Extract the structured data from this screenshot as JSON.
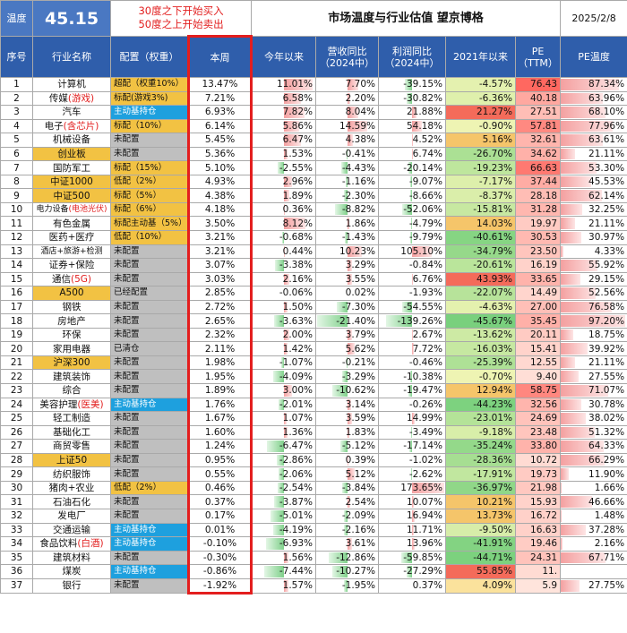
{
  "header": {
    "temp_label": "温度",
    "temp_value": "45.15",
    "rule_line1": "30度之下开始买入",
    "rule_line2": "50度之上开始卖出",
    "title": "市场温度与行业估值 望京博格",
    "date": "2025/2/8"
  },
  "columns": [
    "序号",
    "行业名称",
    "配置（权重）",
    "本周",
    "今年以来",
    "营收同比（2024中）",
    "利润同比（2024中）",
    "2021年以来",
    "PE（TTM）",
    "PE温度"
  ],
  "colors": {
    "header_blue": "#2f5eab",
    "gold": "#f2c243",
    "cyan": "#1ea0de",
    "gray": "#bfbfbf",
    "week_border": "#e31e1e",
    "pos": "#f4a0a0",
    "neg": "#7fd08a"
  },
  "rows": [
    {
      "no": "1",
      "name": "计算机",
      "sub": "",
      "hl": false,
      "cfg": "超配（权重10%）",
      "ct": "y",
      "week": "13.47%",
      "ytd": "11.01%",
      "rev": "7.70%",
      "prof": "-39.15%",
      "since21": "-4.57%",
      "pe": "76.43",
      "pet": "87.34%",
      "v_ytd": 11.01,
      "v_rev": 7.7,
      "v_prof": -39.15,
      "v_s21": -4.57,
      "v_pe": 76.43,
      "v_pet": 87.34
    },
    {
      "no": "2",
      "name": "传媒",
      "sub": "(游戏)",
      "hl": false,
      "cfg": "标配(游戏3%)",
      "ct": "y",
      "week": "7.21%",
      "ytd": "6.58%",
      "rev": "2.20%",
      "prof": "-30.82%",
      "since21": "-6.36%",
      "pe": "40.18",
      "pet": "63.96%",
      "v_ytd": 6.58,
      "v_rev": 2.2,
      "v_prof": -30.82,
      "v_s21": -6.36,
      "v_pe": 40.18,
      "v_pet": 63.96
    },
    {
      "no": "3",
      "name": "汽车",
      "sub": "",
      "hl": false,
      "cfg": "主动基持仓",
      "ct": "b",
      "week": "6.93%",
      "ytd": "7.82%",
      "rev": "8.04%",
      "prof": "21.88%",
      "since21": "21.27%",
      "pe": "27.51",
      "pet": "68.10%",
      "v_ytd": 7.82,
      "v_rev": 8.04,
      "v_prof": 21.88,
      "v_s21": 21.27,
      "v_pe": 27.51,
      "v_pet": 68.1
    },
    {
      "no": "4",
      "name": "电子",
      "sub": "(含芯片)",
      "hl": false,
      "cfg": "标配（10%）",
      "ct": "y",
      "week": "6.14%",
      "ytd": "5.86%",
      "rev": "14.59%",
      "prof": "54.18%",
      "since21": "-0.90%",
      "pe": "57.81",
      "pet": "77.96%",
      "v_ytd": 5.86,
      "v_rev": 14.59,
      "v_prof": 54.18,
      "v_s21": -0.9,
      "v_pe": 57.81,
      "v_pet": 77.96
    },
    {
      "no": "5",
      "name": "机械设备",
      "sub": "",
      "hl": false,
      "cfg": "未配置",
      "ct": "g",
      "week": "5.45%",
      "ytd": "6.47%",
      "rev": "4.38%",
      "prof": "4.52%",
      "since21": "5.16%",
      "pe": "32.61",
      "pet": "63.61%",
      "v_ytd": 6.47,
      "v_rev": 4.38,
      "v_prof": 4.52,
      "v_s21": 5.16,
      "v_pe": 32.61,
      "v_pet": 63.61
    },
    {
      "no": "6",
      "name": "创业板",
      "sub": "",
      "hl": true,
      "cfg": "未配置",
      "ct": "g",
      "week": "5.36%",
      "ytd": "1.53%",
      "rev": "-0.41%",
      "prof": "6.74%",
      "since21": "-26.70%",
      "pe": "34.62",
      "pet": "21.11%",
      "v_ytd": 1.53,
      "v_rev": -0.41,
      "v_prof": 6.74,
      "v_s21": -26.7,
      "v_pe": 34.62,
      "v_pet": 21.11
    },
    {
      "no": "7",
      "name": "国防军工",
      "sub": "",
      "hl": false,
      "cfg": "标配（15%）",
      "ct": "y",
      "week": "5.10%",
      "ytd": "-2.55%",
      "rev": "-4.43%",
      "prof": "-20.14%",
      "since21": "-19.23%",
      "pe": "66.63",
      "pet": "53.30%",
      "v_ytd": -2.55,
      "v_rev": -4.43,
      "v_prof": -20.14,
      "v_s21": -19.23,
      "v_pe": 66.63,
      "v_pet": 53.3
    },
    {
      "no": "8",
      "name": "中证1000",
      "sub": "",
      "hl": true,
      "cfg": "低配（2%）",
      "ct": "y",
      "week": "4.93%",
      "ytd": "2.96%",
      "rev": "-1.16%",
      "prof": "-9.07%",
      "since21": "-7.17%",
      "pe": "37.44",
      "pet": "45.53%",
      "v_ytd": 2.96,
      "v_rev": -1.16,
      "v_prof": -9.07,
      "v_s21": -7.17,
      "v_pe": 37.44,
      "v_pet": 45.53
    },
    {
      "no": "9",
      "name": "中证500",
      "sub": "",
      "hl": true,
      "cfg": "标配（5%）",
      "ct": "y",
      "week": "4.38%",
      "ytd": "1.89%",
      "rev": "-2.30%",
      "prof": "-8.66%",
      "since21": "-8.37%",
      "pe": "28.18",
      "pet": "62.14%",
      "v_ytd": 1.89,
      "v_rev": -2.3,
      "v_prof": -8.66,
      "v_s21": -8.37,
      "v_pe": 28.18,
      "v_pet": 62.14
    },
    {
      "no": "10",
      "name": "电力设备",
      "sub": "(电池光伏)",
      "hl": false,
      "small": true,
      "cfg": "标配（6%）",
      "ct": "y",
      "week": "4.18%",
      "ytd": "0.36%",
      "rev": "-8.82%",
      "prof": "-52.06%",
      "since21": "-15.81%",
      "pe": "31.28",
      "pet": "32.25%",
      "v_ytd": 0.36,
      "v_rev": -8.82,
      "v_prof": -52.06,
      "v_s21": -15.81,
      "v_pe": 31.28,
      "v_pet": 32.25
    },
    {
      "no": "11",
      "name": "有色金属",
      "sub": "",
      "hl": false,
      "cfg": "标配主动基（5%）",
      "ct": "y",
      "week": "3.50%",
      "ytd": "8.12%",
      "rev": "1.86%",
      "prof": "-4.79%",
      "since21": "14.03%",
      "pe": "19.97",
      "pet": "21.11%",
      "v_ytd": 8.12,
      "v_rev": 1.86,
      "v_prof": -4.79,
      "v_s21": 14.03,
      "v_pe": 19.97,
      "v_pet": 21.11
    },
    {
      "no": "12",
      "name": "医药+医疗",
      "sub": "",
      "hl": false,
      "cfg": "低配（10%）",
      "ct": "y",
      "week": "3.21%",
      "ytd": "-0.68%",
      "rev": "-1.43%",
      "prof": "-9.79%",
      "since21": "-40.61%",
      "pe": "30.53",
      "pet": "30.97%",
      "v_ytd": -0.68,
      "v_rev": -1.43,
      "v_prof": -9.79,
      "v_s21": -40.61,
      "v_pe": 30.53,
      "v_pet": 30.97
    },
    {
      "no": "13",
      "name": "酒店+旅游+检测",
      "sub": "",
      "hl": false,
      "small": true,
      "cfg": "未配置",
      "ct": "g",
      "week": "3.21%",
      "ytd": "0.44%",
      "rev": "10.23%",
      "prof": "105.10%",
      "since21": "-34.79%",
      "pe": "23.50",
      "pet": "4.33%",
      "v_ytd": 0.44,
      "v_rev": 10.23,
      "v_prof": 105.1,
      "v_s21": -34.79,
      "v_pe": 23.5,
      "v_pet": 4.33
    },
    {
      "no": "14",
      "name": "证券+保险",
      "sub": "",
      "hl": false,
      "cfg": "未配置",
      "ct": "g",
      "week": "3.07%",
      "ytd": "-3.38%",
      "rev": "3.29%",
      "prof": "-0.84%",
      "since21": "-20.61%",
      "pe": "16.19",
      "pet": "55.92%",
      "v_ytd": -3.38,
      "v_rev": 3.29,
      "v_prof": -0.84,
      "v_s21": -20.61,
      "v_pe": 16.19,
      "v_pet": 55.92
    },
    {
      "no": "15",
      "name": "通信",
      "sub": "(5G)",
      "hl": false,
      "cfg": "未配置",
      "ct": "g",
      "week": "3.03%",
      "ytd": "2.16%",
      "rev": "3.55%",
      "prof": "6.76%",
      "since21": "43.93%",
      "pe": "33.65",
      "pet": "29.15%",
      "v_ytd": 2.16,
      "v_rev": 3.55,
      "v_prof": 6.76,
      "v_s21": 43.93,
      "v_pe": 33.65,
      "v_pet": 29.15
    },
    {
      "no": "16",
      "name": "A500",
      "sub": "",
      "hl": true,
      "cfg": "已经配置",
      "ct": "g",
      "week": "2.85%",
      "ytd": "-0.06%",
      "rev": "0.02%",
      "prof": "-1.93%",
      "since21": "-22.07%",
      "pe": "14.49",
      "pet": "52.56%",
      "v_ytd": -0.06,
      "v_rev": 0.02,
      "v_prof": -1.93,
      "v_s21": -22.07,
      "v_pe": 14.49,
      "v_pet": 52.56
    },
    {
      "no": "17",
      "name": "钢铁",
      "sub": "",
      "hl": false,
      "cfg": "未配置",
      "ct": "g",
      "week": "2.72%",
      "ytd": "1.50%",
      "rev": "-7.30%",
      "prof": "-54.55%",
      "since21": "-4.63%",
      "pe": "27.00",
      "pet": "76.58%",
      "v_ytd": 1.5,
      "v_rev": -7.3,
      "v_prof": -54.55,
      "v_s21": -4.63,
      "v_pe": 27.0,
      "v_pet": 76.58
    },
    {
      "no": "18",
      "name": "房地产",
      "sub": "",
      "hl": false,
      "cfg": "未配置",
      "ct": "g",
      "week": "2.65%",
      "ytd": "-3.63%",
      "rev": "-21.40%",
      "prof": "-139.26%",
      "since21": "-45.67%",
      "pe": "35.45",
      "pet": "97.20%",
      "v_ytd": -3.63,
      "v_rev": -21.4,
      "v_prof": -139.26,
      "v_s21": -45.67,
      "v_pe": 35.45,
      "v_pet": 97.2
    },
    {
      "no": "19",
      "name": "环保",
      "sub": "",
      "hl": false,
      "cfg": "未配置",
      "ct": "g",
      "week": "2.32%",
      "ytd": "2.00%",
      "rev": "3.79%",
      "prof": "2.67%",
      "since21": "-13.62%",
      "pe": "20.11",
      "pet": "18.75%",
      "v_ytd": 2.0,
      "v_rev": 3.79,
      "v_prof": 2.67,
      "v_s21": -13.62,
      "v_pe": 20.11,
      "v_pet": 18.75
    },
    {
      "no": "20",
      "name": "家用电器",
      "sub": "",
      "hl": false,
      "cfg": "已清仓",
      "ct": "g",
      "week": "2.11%",
      "ytd": "1.42%",
      "rev": "5.62%",
      "prof": "7.72%",
      "since21": "-16.03%",
      "pe": "15.41",
      "pet": "39.92%",
      "v_ytd": 1.42,
      "v_rev": 5.62,
      "v_prof": 7.72,
      "v_s21": -16.03,
      "v_pe": 15.41,
      "v_pet": 39.92
    },
    {
      "no": "21",
      "name": "沪深300",
      "sub": "",
      "hl": true,
      "cfg": "未配置",
      "ct": "g",
      "week": "1.98%",
      "ytd": "-1.07%",
      "rev": "-0.21%",
      "prof": "-0.46%",
      "since21": "-25.39%",
      "pe": "12.55",
      "pet": "21.11%",
      "v_ytd": -1.07,
      "v_rev": -0.21,
      "v_prof": -0.46,
      "v_s21": -25.39,
      "v_pe": 12.55,
      "v_pet": 21.11
    },
    {
      "no": "22",
      "name": "建筑装饰",
      "sub": "",
      "hl": false,
      "cfg": "未配置",
      "ct": "g",
      "week": "1.95%",
      "ytd": "-4.09%",
      "rev": "-3.29%",
      "prof": "-10.38%",
      "since21": "-0.70%",
      "pe": "9.40",
      "pet": "27.55%",
      "v_ytd": -4.09,
      "v_rev": -3.29,
      "v_prof": -10.38,
      "v_s21": -0.7,
      "v_pe": 9.4,
      "v_pet": 27.55
    },
    {
      "no": "23",
      "name": "综合",
      "sub": "",
      "hl": false,
      "cfg": "未配置",
      "ct": "g",
      "week": "1.89%",
      "ytd": "3.00%",
      "rev": "-10.62%",
      "prof": "-19.47%",
      "since21": "12.94%",
      "pe": "58.75",
      "pet": "71.07%",
      "v_ytd": 3.0,
      "v_rev": -10.62,
      "v_prof": -19.47,
      "v_s21": 12.94,
      "v_pe": 58.75,
      "v_pet": 71.07
    },
    {
      "no": "24",
      "name": "美容护理",
      "sub": "(医美)",
      "hl": false,
      "cfg": "主动基持仓",
      "ct": "b",
      "week": "1.76%",
      "ytd": "-2.01%",
      "rev": "3.14%",
      "prof": "-0.26%",
      "since21": "-44.23%",
      "pe": "32.56",
      "pet": "30.78%",
      "v_ytd": -2.01,
      "v_rev": 3.14,
      "v_prof": -0.26,
      "v_s21": -44.23,
      "v_pe": 32.56,
      "v_pet": 30.78
    },
    {
      "no": "25",
      "name": "轻工制造",
      "sub": "",
      "hl": false,
      "cfg": "未配置",
      "ct": "g",
      "week": "1.67%",
      "ytd": "1.07%",
      "rev": "3.59%",
      "prof": "14.99%",
      "since21": "-23.01%",
      "pe": "24.69",
      "pet": "38.02%",
      "v_ytd": 1.07,
      "v_rev": 3.59,
      "v_prof": 14.99,
      "v_s21": -23.01,
      "v_pe": 24.69,
      "v_pet": 38.02
    },
    {
      "no": "26",
      "name": "基础化工",
      "sub": "",
      "hl": false,
      "cfg": "未配置",
      "ct": "g",
      "week": "1.60%",
      "ytd": "1.36%",
      "rev": "1.83%",
      "prof": "-3.49%",
      "since21": "-9.18%",
      "pe": "23.48",
      "pet": "51.32%",
      "v_ytd": 1.36,
      "v_rev": 1.83,
      "v_prof": -3.49,
      "v_s21": -9.18,
      "v_pe": 23.48,
      "v_pet": 51.32
    },
    {
      "no": "27",
      "name": "商贸零售",
      "sub": "",
      "hl": false,
      "cfg": "未配置",
      "ct": "g",
      "week": "1.24%",
      "ytd": "-6.47%",
      "rev": "-5.12%",
      "prof": "-17.14%",
      "since21": "-35.24%",
      "pe": "33.80",
      "pet": "64.33%",
      "v_ytd": -6.47,
      "v_rev": -5.12,
      "v_prof": -17.14,
      "v_s21": -35.24,
      "v_pe": 33.8,
      "v_pet": 64.33
    },
    {
      "no": "28",
      "name": "上证50",
      "sub": "",
      "hl": true,
      "cfg": "未配置",
      "ct": "g",
      "week": "0.95%",
      "ytd": "-2.86%",
      "rev": "0.39%",
      "prof": "-1.02%",
      "since21": "-28.36%",
      "pe": "10.72",
      "pet": "66.29%",
      "v_ytd": -2.86,
      "v_rev": 0.39,
      "v_prof": -1.02,
      "v_s21": -28.36,
      "v_pe": 10.72,
      "v_pet": 66.29
    },
    {
      "no": "29",
      "name": "纺织服饰",
      "sub": "",
      "hl": false,
      "cfg": "未配置",
      "ct": "g",
      "week": "0.55%",
      "ytd": "-2.06%",
      "rev": "5.12%",
      "prof": "-2.62%",
      "since21": "-17.91%",
      "pe": "19.73",
      "pet": "11.90%",
      "v_ytd": -2.06,
      "v_rev": 5.12,
      "v_prof": -2.62,
      "v_s21": -17.91,
      "v_pe": 19.73,
      "v_pet": 11.9
    },
    {
      "no": "30",
      "name": "猪肉+农业",
      "sub": "",
      "hl": false,
      "cfg": "低配（2%）",
      "ct": "y",
      "week": "0.46%",
      "ytd": "-2.54%",
      "rev": "-3.84%",
      "prof": "173.65%",
      "since21": "-36.97%",
      "pe": "21.98",
      "pet": "1.66%",
      "v_ytd": -2.54,
      "v_rev": -3.84,
      "v_prof": 173.65,
      "v_s21": -36.97,
      "v_pe": 21.98,
      "v_pet": 1.66
    },
    {
      "no": "31",
      "name": "石油石化",
      "sub": "",
      "hl": false,
      "cfg": "未配置",
      "ct": "g",
      "week": "0.37%",
      "ytd": "-3.87%",
      "rev": "2.54%",
      "prof": "10.07%",
      "since21": "10.21%",
      "pe": "15.93",
      "pet": "46.66%",
      "v_ytd": -3.87,
      "v_rev": 2.54,
      "v_prof": 10.07,
      "v_s21": 10.21,
      "v_pe": 15.93,
      "v_pet": 46.66
    },
    {
      "no": "32",
      "name": "发电厂",
      "sub": "",
      "hl": false,
      "cfg": "未配置",
      "ct": "g",
      "week": "0.17%",
      "ytd": "-5.01%",
      "rev": "-2.09%",
      "prof": "16.94%",
      "since21": "13.73%",
      "pe": "16.72",
      "pet": "1.48%",
      "v_ytd": -5.01,
      "v_rev": -2.09,
      "v_prof": 16.94,
      "v_s21": 13.73,
      "v_pe": 16.72,
      "v_pet": 1.48
    },
    {
      "no": "33",
      "name": "交通运输",
      "sub": "",
      "hl": false,
      "cfg": "主动基持仓",
      "ct": "b",
      "week": "0.01%",
      "ytd": "-4.19%",
      "rev": "-2.16%",
      "prof": "11.71%",
      "since21": "-9.50%",
      "pe": "16.63",
      "pet": "37.28%",
      "v_ytd": -4.19,
      "v_rev": -2.16,
      "v_prof": 11.71,
      "v_s21": -9.5,
      "v_pe": 16.63,
      "v_pet": 37.28
    },
    {
      "no": "34",
      "name": "食品饮料",
      "sub": "(白酒)",
      "hl": false,
      "cfg": "主动基持仓",
      "ct": "b",
      "week": "-0.10%",
      "ytd": "-6.93%",
      "rev": "3.61%",
      "prof": "13.96%",
      "since21": "-41.91%",
      "pe": "19.46",
      "pet": "2.16%",
      "v_ytd": -6.93,
      "v_rev": 3.61,
      "v_prof": 13.96,
      "v_s21": -41.91,
      "v_pe": 19.46,
      "v_pet": 2.16
    },
    {
      "no": "35",
      "name": "建筑材料",
      "sub": "",
      "hl": false,
      "cfg": "未配置",
      "ct": "g",
      "week": "-0.30%",
      "ytd": "1.56%",
      "rev": "-12.86%",
      "prof": "-59.85%",
      "since21": "-44.71%",
      "pe": "24.31",
      "pet": "67.71%",
      "v_ytd": 1.56,
      "v_rev": -12.86,
      "v_prof": -59.85,
      "v_s21": -44.71,
      "v_pe": 24.31,
      "v_pet": 67.71
    },
    {
      "no": "36",
      "name": "煤炭",
      "sub": "",
      "hl": false,
      "cfg": "主动基持仓",
      "ct": "b",
      "week": "-0.86%",
      "ytd": "-7.44%",
      "rev": "-10.27%",
      "prof": "-27.29%",
      "since21": "55.85%",
      "pe": "11.",
      "pet": "",
      "v_ytd": -7.44,
      "v_rev": -10.27,
      "v_prof": -27.29,
      "v_s21": 55.85,
      "v_pe": 11,
      "v_pet": 0
    },
    {
      "no": "37",
      "name": "银行",
      "sub": "",
      "hl": false,
      "cfg": "未配置",
      "ct": "g",
      "week": "-1.92%",
      "ytd": "1.57%",
      "rev": "-1.95%",
      "prof": "0.37%",
      "since21": "4.09%",
      "pe": "5.9",
      "pet": "27.75%",
      "v_ytd": 1.57,
      "v_rev": -1.95,
      "v_prof": 0.37,
      "v_s21": 4.09,
      "v_pe": 5.9,
      "v_pet": 27.75
    }
  ]
}
